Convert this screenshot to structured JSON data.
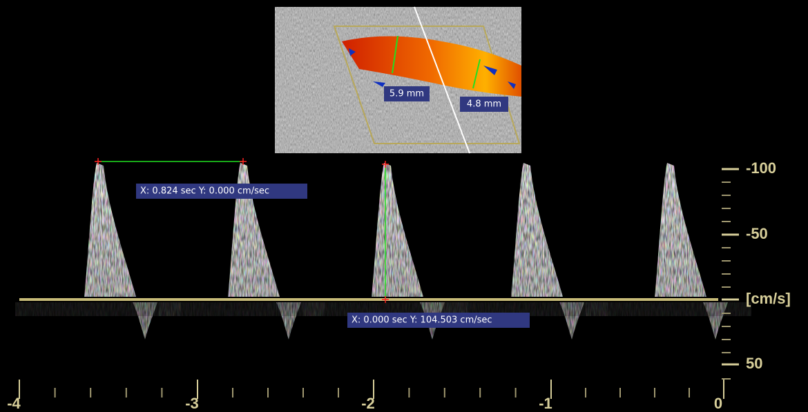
{
  "measurements": {
    "vessel_diameters": [
      "5.9 mm",
      "4.8 mm"
    ],
    "time_caliper": "X: 0.824 sec Y: 0.000 cm/sec",
    "velocity_caliper": "X: 0.000 sec Y: 104.503 cm/sec"
  },
  "velocity_scale": [
    "-100",
    "-50",
    "[cm/s]",
    "50"
  ],
  "time_scale": [
    "-4",
    "-3",
    "-2",
    "-1",
    "0"
  ]
}
